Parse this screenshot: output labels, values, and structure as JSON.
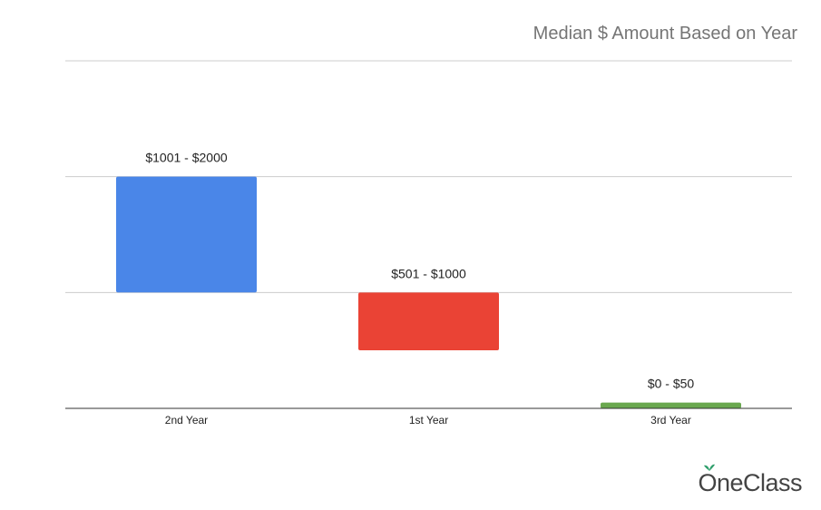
{
  "chart_data": {
    "type": "bar",
    "title": "Median $ Amount Based on Year",
    "categories": [
      "2nd Year",
      "1st Year",
      "3rd Year"
    ],
    "series": [
      {
        "values": [
          [
            1001,
            2000
          ],
          [
            501,
            1000
          ],
          [
            0,
            50
          ]
        ],
        "labels": [
          "$1001 - $2000",
          "$501 - $1000",
          "$0 - $50"
        ],
        "colors": [
          "#4a86e8",
          "#ea4335",
          "#6aa84f"
        ]
      }
    ],
    "xlabel": "",
    "ylabel": "",
    "ylim": [
      0,
      3000
    ],
    "grid": true,
    "legend": "none",
    "y_tick_labels_shown": false
  },
  "brand": {
    "name": "OneClass",
    "leaf_color": "#2e9e6b"
  }
}
